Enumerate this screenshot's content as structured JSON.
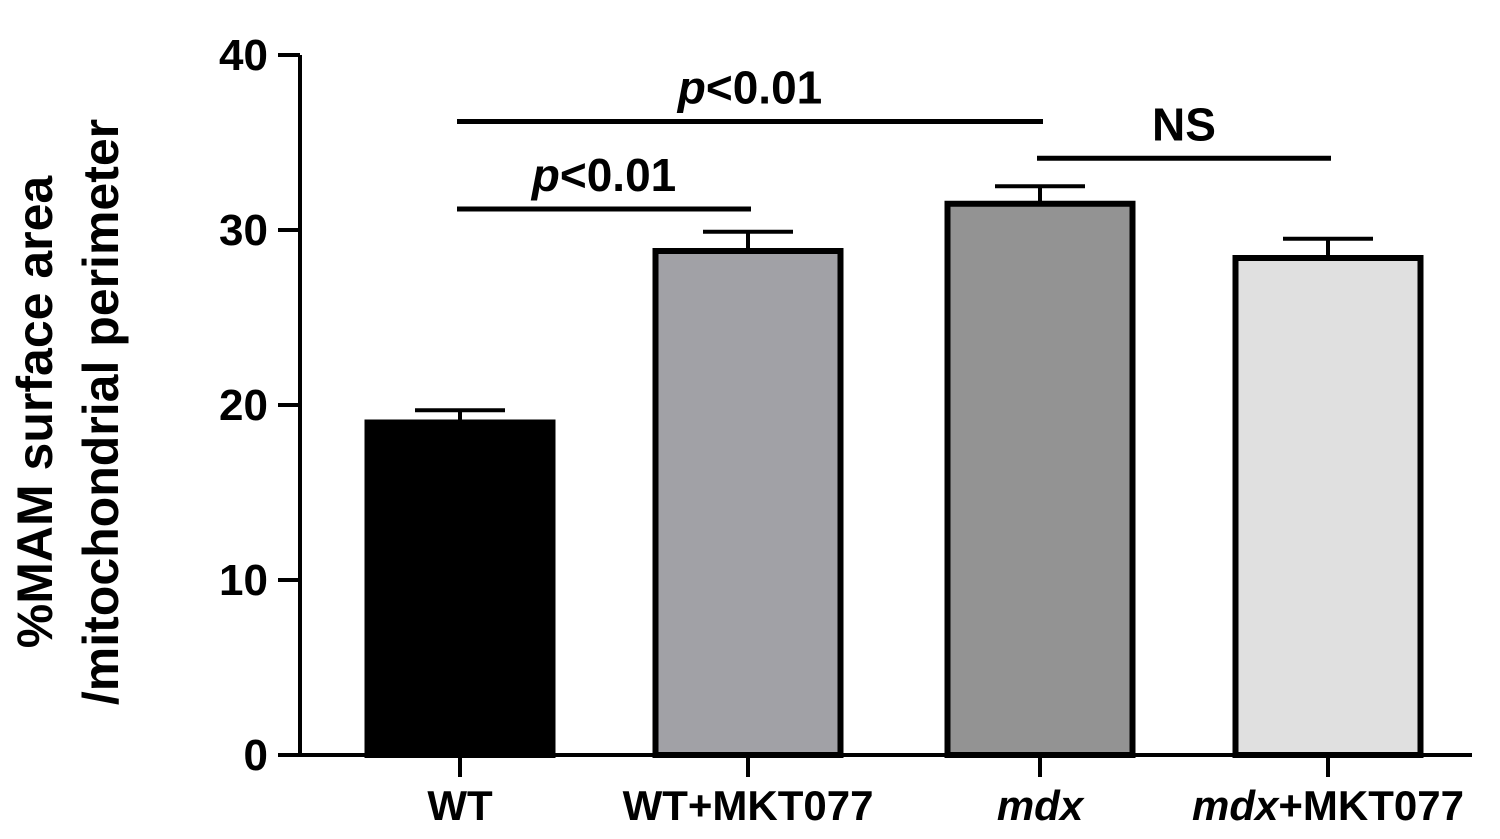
{
  "chart_data": {
    "type": "bar",
    "categories": [
      {
        "parts": [
          {
            "text": "WT",
            "italic": false
          }
        ]
      },
      {
        "parts": [
          {
            "text": "WT+MKT077",
            "italic": false
          }
        ]
      },
      {
        "parts": [
          {
            "text": "mdx",
            "italic": true
          }
        ]
      },
      {
        "parts": [
          {
            "text": "mdx",
            "italic": true
          },
          {
            "text": "+MKT077",
            "italic": false
          }
        ]
      }
    ],
    "values": [
      19.0,
      28.8,
      31.5,
      28.4
    ],
    "errors": [
      0.7,
      1.1,
      1.0,
      1.1
    ],
    "colors": [
      "#000000",
      "#a1a1a6",
      "#939393",
      "#e0e0e0"
    ],
    "ylabel_lines": [
      "%MAM surface area",
      "/mitochondrial perimeter"
    ],
    "ylim": [
      0,
      40
    ],
    "yticks": [
      0,
      10,
      20,
      30,
      40
    ],
    "grid": false,
    "significance": [
      {
        "from": 0,
        "to": 2,
        "y": 36.2,
        "label_parts": [
          {
            "text": "p",
            "italic": true
          },
          {
            "text": "<0.01",
            "italic": false
          }
        ]
      },
      {
        "from": 0,
        "to": 1,
        "y": 31.2,
        "label_parts": [
          {
            "text": "p",
            "italic": true
          },
          {
            "text": "<0.01",
            "italic": false
          }
        ]
      },
      {
        "from": 2,
        "to": 3,
        "y": 34.1,
        "label_parts": [
          {
            "text": "NS",
            "italic": false
          }
        ]
      }
    ]
  }
}
